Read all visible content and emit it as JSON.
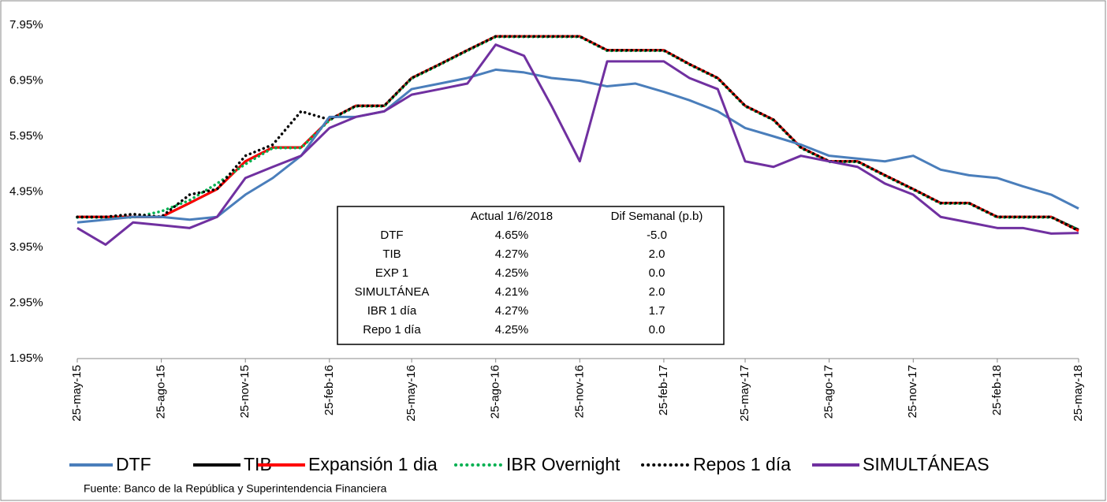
{
  "chart_data": {
    "type": "line",
    "x": [
      "2015-05-25",
      "2015-06-25",
      "2015-07-25",
      "2015-08-25",
      "2015-09-25",
      "2015-10-25",
      "2015-11-25",
      "2015-12-25",
      "2016-01-25",
      "2016-02-25",
      "2016-03-25",
      "2016-04-25",
      "2016-05-25",
      "2016-06-25",
      "2016-07-25",
      "2016-08-25",
      "2016-09-25",
      "2016-10-25",
      "2016-11-25",
      "2016-12-25",
      "2017-01-25",
      "2017-02-25",
      "2017-03-25",
      "2017-04-25",
      "2017-05-25",
      "2017-06-25",
      "2017-07-25",
      "2017-08-25",
      "2017-09-25",
      "2017-10-25",
      "2017-11-25",
      "2017-12-25",
      "2018-01-25",
      "2018-02-25",
      "2018-03-25",
      "2018-04-25",
      "2018-05-25"
    ],
    "series": [
      {
        "name": "DTF",
        "color": "#4a7ebb",
        "dash": "solid",
        "values": [
          4.4,
          4.45,
          4.5,
          4.5,
          4.45,
          4.5,
          4.9,
          5.2,
          5.6,
          6.3,
          6.3,
          6.4,
          6.8,
          6.9,
          7.0,
          7.15,
          7.1,
          7.0,
          6.95,
          6.85,
          6.9,
          6.75,
          6.6,
          6.4,
          6.1,
          5.95,
          5.8,
          5.6,
          5.55,
          5.5,
          5.6,
          5.35,
          5.25,
          5.2,
          5.05,
          4.9,
          4.65
        ]
      },
      {
        "name": "TIB",
        "color": "#000000",
        "dash": "solid",
        "values": [
          4.5,
          4.5,
          4.5,
          4.5,
          4.75,
          5.0,
          5.5,
          5.75,
          5.75,
          6.25,
          6.5,
          6.5,
          7.0,
          7.25,
          7.5,
          7.75,
          7.75,
          7.75,
          7.75,
          7.5,
          7.5,
          7.5,
          7.25,
          7.0,
          6.5,
          6.25,
          5.75,
          5.5,
          5.5,
          5.25,
          5.0,
          4.75,
          4.75,
          4.5,
          4.5,
          4.5,
          4.27
        ]
      },
      {
        "name": "Expansión 1 dia",
        "color": "#ff0000",
        "dash": "solid",
        "values": [
          4.5,
          4.5,
          4.5,
          4.5,
          4.75,
          5.0,
          5.5,
          5.75,
          5.75,
          6.25,
          6.5,
          6.5,
          7.0,
          7.25,
          7.5,
          7.75,
          7.75,
          7.75,
          7.75,
          7.5,
          7.5,
          7.5,
          7.25,
          7.0,
          6.5,
          6.25,
          5.75,
          5.5,
          5.5,
          5.25,
          5.0,
          4.75,
          4.75,
          4.5,
          4.5,
          4.5,
          4.25
        ]
      },
      {
        "name": "IBR Overnight",
        "color": "#00b050",
        "dash": "dotted",
        "values": [
          4.49,
          4.49,
          4.49,
          4.6,
          4.8,
          5.1,
          5.45,
          5.74,
          5.74,
          6.24,
          6.49,
          6.49,
          6.99,
          7.24,
          7.49,
          7.74,
          7.74,
          7.74,
          7.74,
          7.49,
          7.49,
          7.49,
          7.24,
          6.99,
          6.49,
          6.24,
          5.74,
          5.49,
          5.49,
          5.24,
          4.99,
          4.74,
          4.74,
          4.49,
          4.49,
          4.49,
          4.27
        ]
      },
      {
        "name": "Repos 1 día",
        "color": "#000000",
        "dash": "dotted",
        "values": [
          4.5,
          4.5,
          4.55,
          4.5,
          4.9,
          5.0,
          5.6,
          5.8,
          6.4,
          6.25,
          6.5,
          6.5,
          7.0,
          7.25,
          7.5,
          7.75,
          7.75,
          7.75,
          7.75,
          7.5,
          7.5,
          7.5,
          7.25,
          7.0,
          6.5,
          6.25,
          5.75,
          5.5,
          5.5,
          5.25,
          5.0,
          4.75,
          4.75,
          4.5,
          4.5,
          4.5,
          4.25
        ]
      },
      {
        "name": "SIMULTÁNEAS",
        "color": "#7030a0",
        "dash": "solid",
        "values": [
          4.3,
          4.0,
          4.4,
          4.35,
          4.3,
          4.5,
          5.2,
          5.4,
          5.6,
          6.1,
          6.3,
          6.4,
          6.7,
          6.8,
          6.9,
          7.6,
          7.4,
          6.5,
          5.5,
          7.3,
          7.3,
          7.3,
          7.0,
          6.8,
          5.5,
          5.4,
          5.6,
          5.5,
          5.4,
          5.1,
          4.9,
          4.5,
          4.4,
          4.3,
          4.3,
          4.2,
          4.21
        ]
      }
    ],
    "xlim": [
      "2015-05-25",
      "2018-05-25"
    ],
    "xticks": [
      {
        "value": "2015-05-25",
        "label": "25-may-15"
      },
      {
        "value": "2015-08-25",
        "label": "25-ago-15"
      },
      {
        "value": "2015-11-25",
        "label": "25-nov-15"
      },
      {
        "value": "2016-02-25",
        "label": "25-feb-16"
      },
      {
        "value": "2016-05-25",
        "label": "25-may-16"
      },
      {
        "value": "2016-08-25",
        "label": "25-ago-16"
      },
      {
        "value": "2016-11-25",
        "label": "25-nov-16"
      },
      {
        "value": "2017-02-25",
        "label": "25-feb-17"
      },
      {
        "value": "2017-05-25",
        "label": "25-may-17"
      },
      {
        "value": "2017-08-25",
        "label": "25-ago-17"
      },
      {
        "value": "2017-11-25",
        "label": "25-nov-17"
      },
      {
        "value": "2018-02-25",
        "label": "25-feb-18"
      },
      {
        "value": "2018-05-25",
        "label": "25-may-18"
      }
    ],
    "ylim": [
      1.95,
      7.95
    ],
    "yticks": [
      {
        "value": 1.95,
        "label": "1.95%"
      },
      {
        "value": 2.95,
        "label": "2.95%"
      },
      {
        "value": 3.95,
        "label": "3.95%"
      },
      {
        "value": 4.95,
        "label": "4.95%"
      },
      {
        "value": 5.95,
        "label": "5.95%"
      },
      {
        "value": 6.95,
        "label": "6.95%"
      },
      {
        "value": 7.95,
        "label": "7.95%"
      }
    ],
    "grid": false,
    "legend": "bottom",
    "table": {
      "columns": [
        "Actual 1/6/2018",
        "Dif Semanal (p.b)"
      ],
      "rows": [
        {
          "label": "DTF",
          "values": [
            "4.65%",
            "-5.0"
          ]
        },
        {
          "label": "TIB",
          "values": [
            "4.27%",
            "2.0"
          ]
        },
        {
          "label": "EXP 1",
          "values": [
            "4.25%",
            "0.0"
          ]
        },
        {
          "label": "SIMULTÁNEA",
          "values": [
            "4.21%",
            "2.0"
          ]
        },
        {
          "label": "IBR 1 día",
          "values": [
            "4.27%",
            "1.7"
          ]
        },
        {
          "label": "Repo 1 día",
          "values": [
            "4.25%",
            "0.0"
          ]
        }
      ]
    },
    "source": "Fuente: Banco de la República y Superintendencia Financiera"
  }
}
